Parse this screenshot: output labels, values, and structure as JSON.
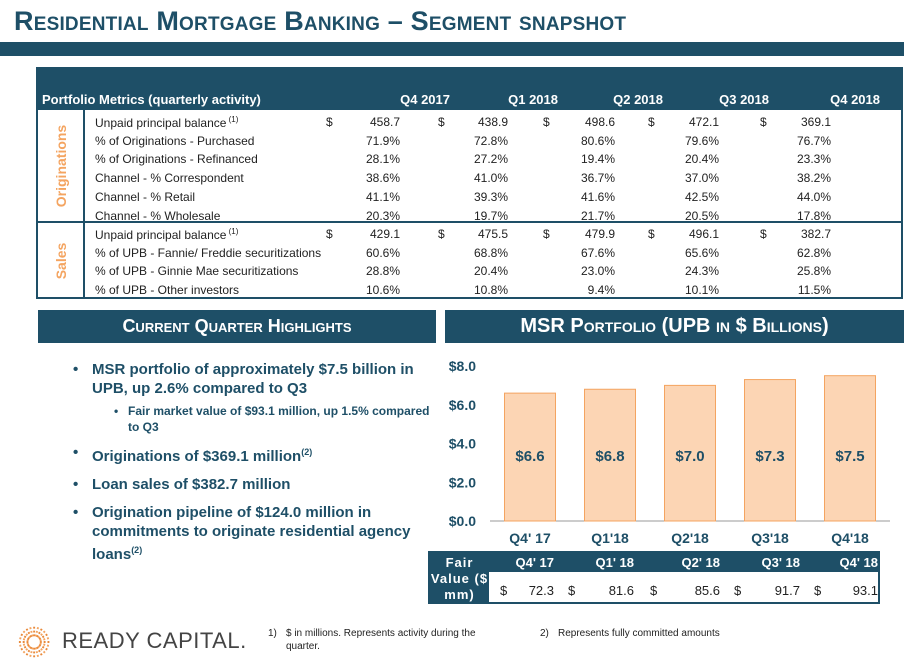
{
  "title": "Residential Mortgage Banking – Segment snapshot",
  "table": {
    "header_label": "Portfolio Metrics (quarterly activity)",
    "quarters": [
      "Q4 2017",
      "Q1 2018",
      "Q2 2018",
      "Q3 2018",
      "Q4 2018"
    ],
    "currency_symbol": "$",
    "sections": [
      {
        "name": "Originations",
        "rows": [
          {
            "label": "Unpaid principal balance",
            "note": "(1)",
            "currency": true,
            "values": [
              "458.7",
              "438.9",
              "498.6",
              "472.1",
              "369.1"
            ]
          },
          {
            "label": " % of Originations - Purchased",
            "note": "",
            "currency": false,
            "values": [
              "71.9%",
              "72.8%",
              "80.6%",
              "79.6%",
              "76.7%"
            ]
          },
          {
            "label": " % of Originations - Refinanced",
            "note": "",
            "currency": false,
            "values": [
              "28.1%",
              "27.2%",
              "19.4%",
              "20.4%",
              "23.3%"
            ]
          },
          {
            "label": "Channel - % Correspondent",
            "note": "",
            "currency": false,
            "values": [
              "38.6%",
              "41.0%",
              "36.7%",
              "37.0%",
              "38.2%"
            ]
          },
          {
            "label": "Channel - % Retail",
            "note": "",
            "currency": false,
            "values": [
              "41.1%",
              "39.3%",
              "41.6%",
              "42.5%",
              "44.0%"
            ]
          },
          {
            "label": "Channel - % Wholesale",
            "note": "",
            "currency": false,
            "values": [
              "20.3%",
              "19.7%",
              "21.7%",
              "20.5%",
              "17.8%"
            ]
          }
        ]
      },
      {
        "name": "Sales",
        "rows": [
          {
            "label": "Unpaid principal balance",
            "note": "(1)",
            "currency": true,
            "values": [
              "429.1",
              "475.5",
              "479.9",
              "496.1",
              "382.7"
            ]
          },
          {
            "label": " % of UPB - Fannie/ Freddie securitizations",
            "note": "",
            "currency": false,
            "values": [
              "60.6%",
              "68.8%",
              "67.6%",
              "65.6%",
              "62.8%"
            ]
          },
          {
            "label": " % of UPB - Ginnie Mae securitizations",
            "note": "",
            "currency": false,
            "values": [
              "28.8%",
              "20.4%",
              "23.0%",
              "24.3%",
              "25.8%"
            ]
          },
          {
            "label": " % of UPB - Other investors",
            "note": "",
            "currency": false,
            "values": [
              "10.6%",
              "10.8%",
              "9.4%",
              "10.1%",
              "11.5%"
            ]
          }
        ]
      }
    ]
  },
  "highlights": {
    "header": "Current Quarter Highlights",
    "items": [
      {
        "text": "MSR portfolio of approximately $7.5 billion in UPB, up 2.6% compared to Q3",
        "note": "",
        "sub": false
      },
      {
        "text": "Fair market value of $93.1 million, up 1.5% compared to Q3",
        "note": "",
        "sub": true
      },
      {
        "text": "Originations of $369.1 million",
        "note": "(2)",
        "sub": false
      },
      {
        "text": "Loan sales of $382.7 million",
        "note": "",
        "sub": false
      },
      {
        "text": "Origination pipeline of $124.0 million in commitments to originate residential agency loans",
        "note": "(2)",
        "sub": false
      }
    ]
  },
  "msr_header": "MSR Portfolio (UPB in $ Billions)",
  "chart_data": {
    "type": "bar",
    "title": "MSR Portfolio (UPB in $ Billions)",
    "categories": [
      "Q4' 17",
      "Q1'18",
      "Q2'18",
      "Q3'18",
      "Q4'18"
    ],
    "values": [
      6.6,
      6.8,
      7.0,
      7.3,
      7.5
    ],
    "value_labels": [
      "$6.6",
      "$6.8",
      "$7.0",
      "$7.3",
      "$7.5"
    ],
    "ylim": [
      0,
      8
    ],
    "yticks": [
      0,
      2,
      4,
      6,
      8
    ],
    "ytick_labels": [
      "$0.0",
      "$2.0",
      "$4.0",
      "$6.0",
      "$8.0"
    ],
    "bar_color": "#fcd5b4",
    "bar_border": "#f4a460",
    "xlabel": "",
    "ylabel": ""
  },
  "fair_value": {
    "label": "Fair Value ($ mm)",
    "currency_symbol": "$",
    "quarters": [
      "Q4' 17",
      "Q1' 18",
      "Q2' 18",
      "Q3' 18",
      "Q4' 18"
    ],
    "values": [
      "72.3",
      "81.6",
      "85.6",
      "91.7",
      "93.1"
    ]
  },
  "footer": {
    "logo_text": "READY CAPITAL.",
    "note1_num": "1)",
    "note1": "$ in millions. Represents activity during the quarter.",
    "note2_num": "2)",
    "note2": "Represents fully committed amounts"
  },
  "colors": {
    "navy": "#1e4f67",
    "orange": "#f4a460",
    "bar": "#fcd5b4"
  }
}
